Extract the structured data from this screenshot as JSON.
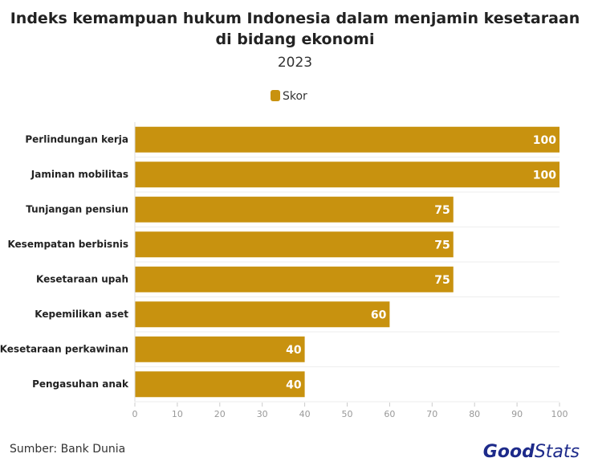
{
  "chart_data": {
    "type": "bar",
    "orientation": "horizontal",
    "title": "Indeks kemampuan hukum Indonesia dalam menjamin kesetaraan di bidang ekonomi",
    "subtitle": "2023",
    "categories": [
      "Perlindungan kerja",
      "Jaminan mobilitas",
      "Tunjangan pensiun",
      "Kesempatan berbisnis",
      "Kesetaraan upah",
      "Kepemilikan aset",
      "Kesetaraan perkawinan",
      "Pengasuhan anak"
    ],
    "series": [
      {
        "name": "Skor",
        "color": "#c8920f",
        "values": [
          100,
          100,
          75,
          75,
          75,
          60,
          40,
          40
        ]
      }
    ],
    "xlim": [
      0,
      100
    ],
    "xticks": [
      0,
      10,
      20,
      30,
      40,
      50,
      60,
      70,
      80,
      90,
      100
    ],
    "grid": false,
    "legend": "top",
    "source": "Sumber: Bank Dunia"
  },
  "logo": {
    "first": "Good",
    "second": "Stats"
  }
}
